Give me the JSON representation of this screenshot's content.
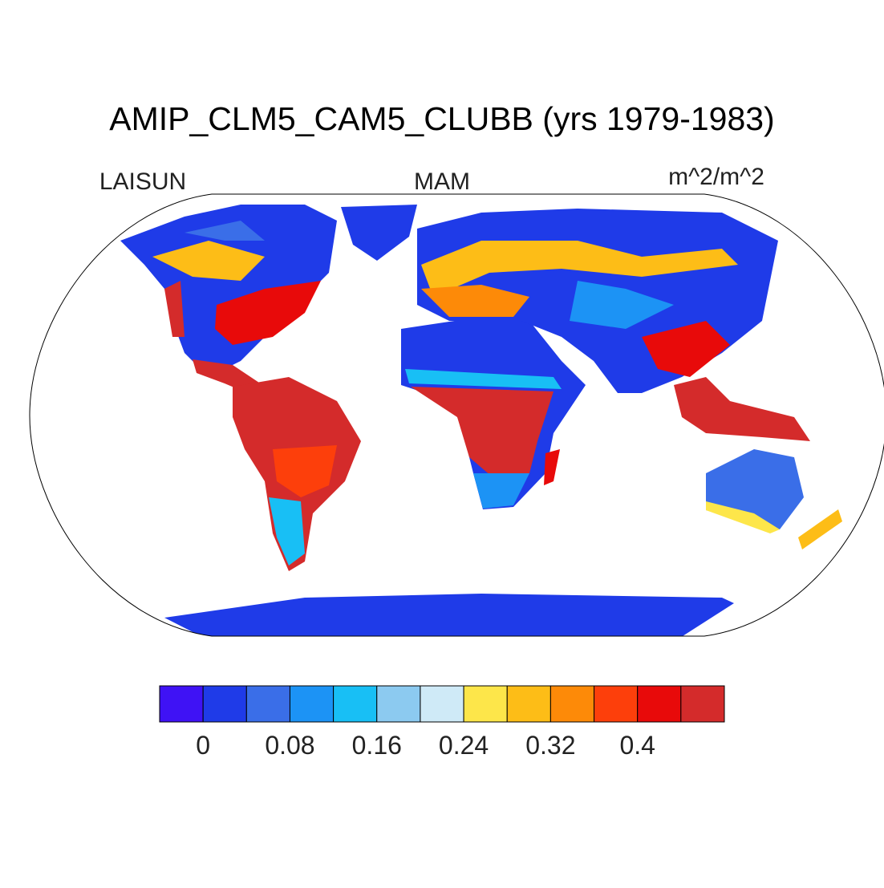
{
  "header": {
    "title": "AMIP_CLM5_CAM5_CLUBB (yrs 1979-1983)",
    "variable": "LAISUN",
    "season": "MAM",
    "units": "m^2/m^2"
  },
  "colorbar": {
    "colors": [
      "#3f12f5",
      "#1f3be8",
      "#3a6ee8",
      "#1c93f5",
      "#18bff5",
      "#8ccaf0",
      "#cfeaf7",
      "#fde64a",
      "#fdbd17",
      "#fd8a08",
      "#fd3f0b",
      "#e80a0a",
      "#d42b2b"
    ],
    "levels": [
      0,
      0.04,
      0.08,
      0.12,
      0.16,
      0.2,
      0.24,
      0.28,
      0.32,
      0.36,
      0.4,
      0.44
    ],
    "ticks": [
      0,
      0.08,
      0.16,
      0.24,
      0.32,
      0.4
    ]
  }
}
